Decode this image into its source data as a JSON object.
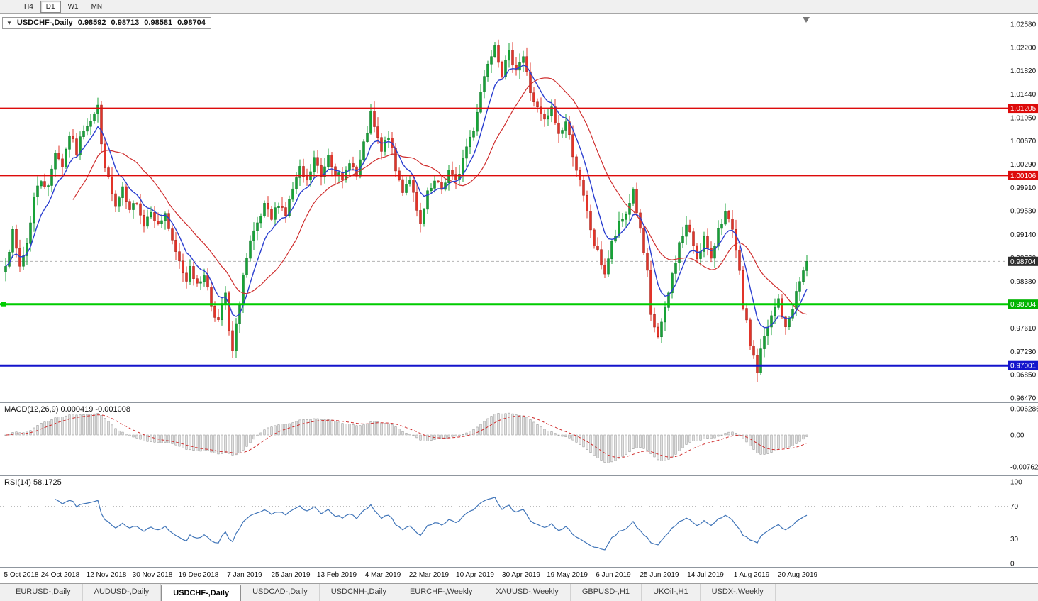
{
  "toolbar": {
    "timeframes": [
      {
        "label": "H4",
        "active": false
      },
      {
        "label": "D1",
        "active": true
      },
      {
        "label": "W1",
        "active": false
      },
      {
        "label": "MN",
        "active": false
      }
    ]
  },
  "chart_title": {
    "symbol": "USDCHF-,Daily",
    "open": "0.98592",
    "high": "0.98713",
    "low": "0.98581",
    "close": "0.98704"
  },
  "indicators": {
    "macd": {
      "label": "MACD(12,26,9) 0.000419 -0.001008",
      "axis_labels": [
        {
          "text": "0.006286",
          "value": 0.006286
        },
        {
          "text": "0.00",
          "value": 0
        },
        {
          "text": "-0.00762",
          "value": -0.00762
        }
      ]
    },
    "rsi": {
      "label": "RSI(14) 58.1725",
      "axis_labels": [
        {
          "text": "100",
          "value": 100
        },
        {
          "text": "70",
          "value": 70
        },
        {
          "text": "30",
          "value": 30
        },
        {
          "text": "0",
          "value": 0
        }
      ],
      "levels": [
        70,
        30
      ]
    }
  },
  "price_axis": {
    "labels": [
      "1.02580",
      "1.02200",
      "1.01820",
      "1.01440",
      "1.01050",
      "1.00670",
      "1.00290",
      "0.99910",
      "0.99530",
      "0.99140",
      "0.98760",
      "0.98380",
      "0.97610",
      "0.97230",
      "0.96850",
      "0.96470"
    ],
    "boxes": [
      {
        "text": "0.98704",
        "price": 0.98704,
        "bg": "#2e2e2e",
        "fg": "#ffffff",
        "name": "price-box-current"
      },
      {
        "text": "1.01205",
        "price": 1.01205,
        "bg": "#dd0b0b",
        "fg": "#ffffff",
        "name": "price-box-resistance-1"
      },
      {
        "text": "1.00106",
        "price": 1.00106,
        "bg": "#dd0b0b",
        "fg": "#ffffff",
        "name": "price-box-resistance-2"
      },
      {
        "text": "0.98004",
        "price": 0.98004,
        "bg": "#00b400",
        "fg": "#ffffff",
        "name": "price-box-support-green"
      },
      {
        "text": "0.97001",
        "price": 0.97001,
        "bg": "#1414cc",
        "fg": "#ffffff",
        "name": "price-box-support-blue"
      }
    ]
  },
  "tabs": [
    {
      "label": "EURUSD-,Daily",
      "active": false
    },
    {
      "label": "AUDUSD-,Daily",
      "active": false
    },
    {
      "label": "USDCHF-,Daily",
      "active": true
    },
    {
      "label": "USDCAD-,Daily",
      "active": false
    },
    {
      "label": "USDCNH-,Daily",
      "active": false
    },
    {
      "label": "EURCHF-,Weekly",
      "active": false
    },
    {
      "label": "XAUUSD-,Weekly",
      "active": false
    },
    {
      "label": "GBPUSD-,H1",
      "active": false
    },
    {
      "label": "UKOil-,H1",
      "active": false
    },
    {
      "label": "USDX-,Weekly",
      "active": false
    }
  ],
  "chart_data": {
    "type": "candlestick",
    "symbol": "USDCHF",
    "timeframe": "Daily",
    "bars": 227,
    "price_range": [
      0.9647,
      1.0258
    ],
    "ohlc_current": {
      "open": 0.98592,
      "high": 0.98713,
      "low": 0.98581,
      "close": 0.98704
    },
    "x_labels": [
      "5 Oct 2018",
      "24 Oct 2018",
      "12 Nov 2018",
      "30 Nov 2018",
      "19 Dec 2018",
      "7 Jan 2019",
      "25 Jan 2019",
      "13 Feb 2019",
      "4 Mar 2019",
      "22 Mar 2019",
      "10 Apr 2019",
      "30 Apr 2019",
      "19 May 2019",
      "6 Jun 2019",
      "25 Jun 2019",
      "14 Jul 2019",
      "1 Aug 2019",
      "20 Aug 2019"
    ],
    "horizontal_lines": [
      {
        "price": 1.01205,
        "color": "#dd0b0b",
        "width": 2,
        "marker": false
      },
      {
        "price": 1.00106,
        "color": "#dd0b0b",
        "width": 2,
        "marker": false
      },
      {
        "price": 0.98004,
        "color": "#00cc00",
        "width": 3,
        "marker": true
      },
      {
        "price": 0.97001,
        "color": "#1414cc",
        "width": 3,
        "marker": false
      }
    ],
    "moving_averages": [
      {
        "type": "EMA",
        "period": 8,
        "color": "#2b3fd0"
      },
      {
        "type": "SMA",
        "period": 20,
        "color": "#cf2d2d"
      }
    ],
    "macd": {
      "fast": 12,
      "slow": 26,
      "signal": 9,
      "current_main": 0.000419,
      "current_signal": -0.001008,
      "range": [
        -0.00762,
        0.006286
      ]
    },
    "rsi": {
      "period": 14,
      "current": 58.1725,
      "range": [
        0,
        100
      ]
    },
    "price_anchors": [
      [
        0,
        0.987
      ],
      [
        2,
        0.9915
      ],
      [
        4,
        0.9862
      ],
      [
        6,
        0.99
      ],
      [
        8,
        0.9975
      ],
      [
        10,
        1.0005
      ],
      [
        12,
        0.999
      ],
      [
        14,
        1.0052
      ],
      [
        16,
        1.0028
      ],
      [
        18,
        1.0078
      ],
      [
        20,
        1.0048
      ],
      [
        22,
        1.0088
      ],
      [
        24,
        1.0105
      ],
      [
        26,
        1.0125
      ],
      [
        27,
        1.0058
      ],
      [
        29,
        1.0002
      ],
      [
        31,
        0.9958
      ],
      [
        33,
        0.9985
      ],
      [
        35,
        0.9948
      ],
      [
        37,
        0.9972
      ],
      [
        39,
        0.993
      ],
      [
        41,
        0.9958
      ],
      [
        43,
        0.9928
      ],
      [
        45,
        0.995
      ],
      [
        47,
        0.9898
      ],
      [
        49,
        0.9868
      ],
      [
        51,
        0.984
      ],
      [
        52,
        0.9868
      ],
      [
        54,
        0.9828
      ],
      [
        56,
        0.9852
      ],
      [
        58,
        0.98
      ],
      [
        60,
        0.9772
      ],
      [
        62,
        0.9818
      ],
      [
        63,
        0.9752
      ],
      [
        64,
        0.9722
      ],
      [
        65,
        0.9762
      ],
      [
        67,
        0.9848
      ],
      [
        69,
        0.9898
      ],
      [
        71,
        0.9928
      ],
      [
        73,
        0.9958
      ],
      [
        75,
        0.9938
      ],
      [
        77,
        0.9968
      ],
      [
        79,
        0.9948
      ],
      [
        81,
        0.9988
      ],
      [
        83,
        1.0018
      ],
      [
        85,
        0.9998
      ],
      [
        87,
        1.0038
      ],
      [
        89,
        1.0008
      ],
      [
        91,
        1.0048
      ],
      [
        93,
        1.0018
      ],
      [
        95,
        0.9998
      ],
      [
        97,
        1.0038
      ],
      [
        99,
        1.0008
      ],
      [
        101,
        1.0058
      ],
      [
        103,
        1.0108
      ],
      [
        104,
        1.0088
      ],
      [
        106,
        1.0048
      ],
      [
        108,
        1.0078
      ],
      [
        110,
        1.0018
      ],
      [
        112,
        0.9988
      ],
      [
        114,
        1.0008
      ],
      [
        116,
        0.9948
      ],
      [
        117,
        0.9928
      ],
      [
        119,
        0.9978
      ],
      [
        121,
        0.9998
      ],
      [
        123,
        0.9988
      ],
      [
        125,
        1.0018
      ],
      [
        127,
        0.9998
      ],
      [
        129,
        1.0038
      ],
      [
        130,
        1.0058
      ],
      [
        132,
        1.0088
      ],
      [
        134,
        1.0148
      ],
      [
        136,
        1.0198
      ],
      [
        138,
        1.0228
      ],
      [
        140,
        1.0178
      ],
      [
        142,
        1.0208
      ],
      [
        144,
        1.0188
      ],
      [
        146,
        1.0205
      ],
      [
        148,
        1.0148
      ],
      [
        150,
        1.0118
      ],
      [
        152,
        1.0098
      ],
      [
        154,
        1.0118
      ],
      [
        156,
        1.0078
      ],
      [
        158,
        1.0098
      ],
      [
        160,
        1.0048
      ],
      [
        162,
        0.9998
      ],
      [
        164,
        0.9948
      ],
      [
        166,
        0.9898
      ],
      [
        168,
        0.9868
      ],
      [
        169,
        0.9852
      ],
      [
        171,
        0.9898
      ],
      [
        173,
        0.9928
      ],
      [
        175,
        0.9948
      ],
      [
        177,
        0.9988
      ],
      [
        179,
        0.9918
      ],
      [
        181,
        0.9848
      ],
      [
        182,
        0.9778
      ],
      [
        184,
        0.9748
      ],
      [
        186,
        0.9788
      ],
      [
        188,
        0.9848
      ],
      [
        190,
        0.9898
      ],
      [
        192,
        0.9928
      ],
      [
        194,
        0.9898
      ],
      [
        195,
        0.9878
      ],
      [
        197,
        0.9908
      ],
      [
        199,
        0.9868
      ],
      [
        201,
        0.9928
      ],
      [
        203,
        0.9948
      ],
      [
        205,
        0.9918
      ],
      [
        207,
        0.9848
      ],
      [
        208,
        0.9798
      ],
      [
        210,
        0.9736
      ],
      [
        211,
        0.9716
      ],
      [
        212,
        0.969
      ],
      [
        213,
        0.9724
      ],
      [
        214,
        0.9744
      ],
      [
        216,
        0.9778
      ],
      [
        218,
        0.9808
      ],
      [
        220,
        0.9758
      ],
      [
        222,
        0.9798
      ],
      [
        224,
        0.9838
      ],
      [
        226,
        0.98704
      ]
    ]
  }
}
